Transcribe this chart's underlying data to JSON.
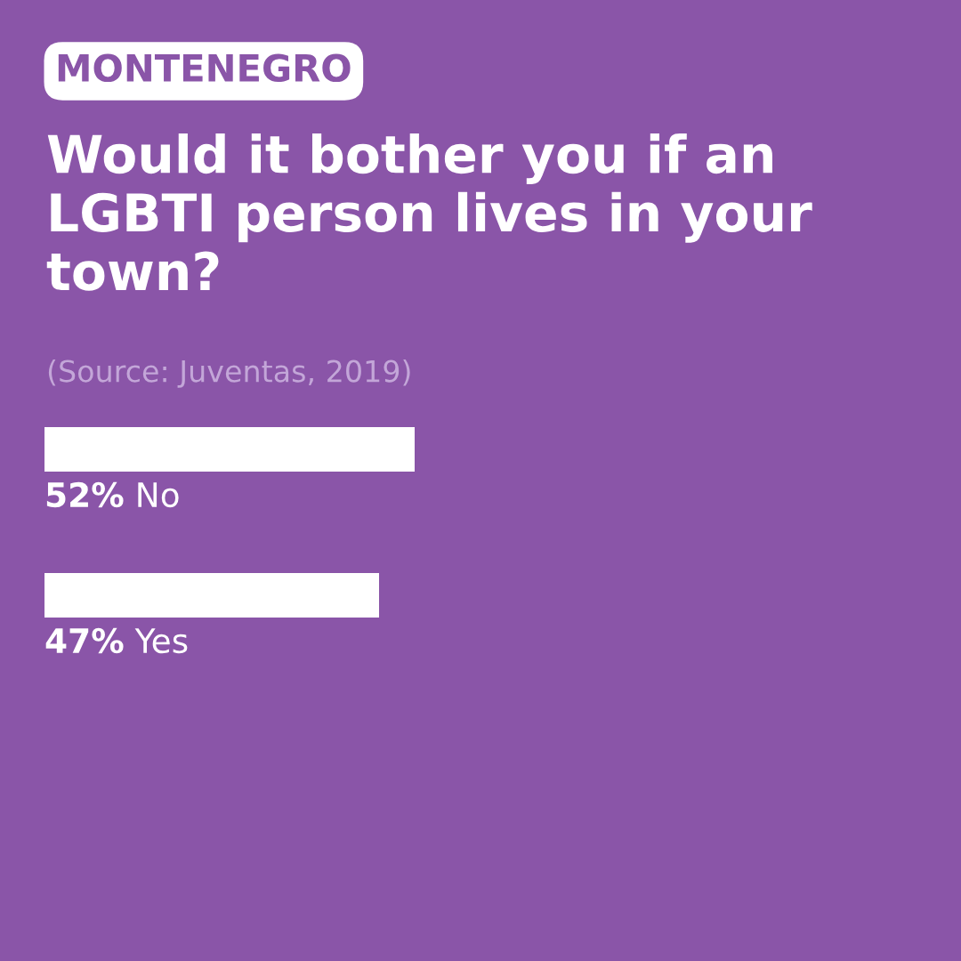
{
  "chart_data": {
    "type": "bar",
    "orientation": "horizontal",
    "title": "Would it bother you if an LGBTI person lives in your town?",
    "annotations": [
      "MONTENEGRO",
      "(Source: Juventas, 2019)"
    ],
    "categories": [
      "No",
      "Yes"
    ],
    "values": [
      52,
      47
    ],
    "value_labels": [
      "52%",
      "47%"
    ],
    "color": "#ffffff",
    "tick_labels": false
  }
}
